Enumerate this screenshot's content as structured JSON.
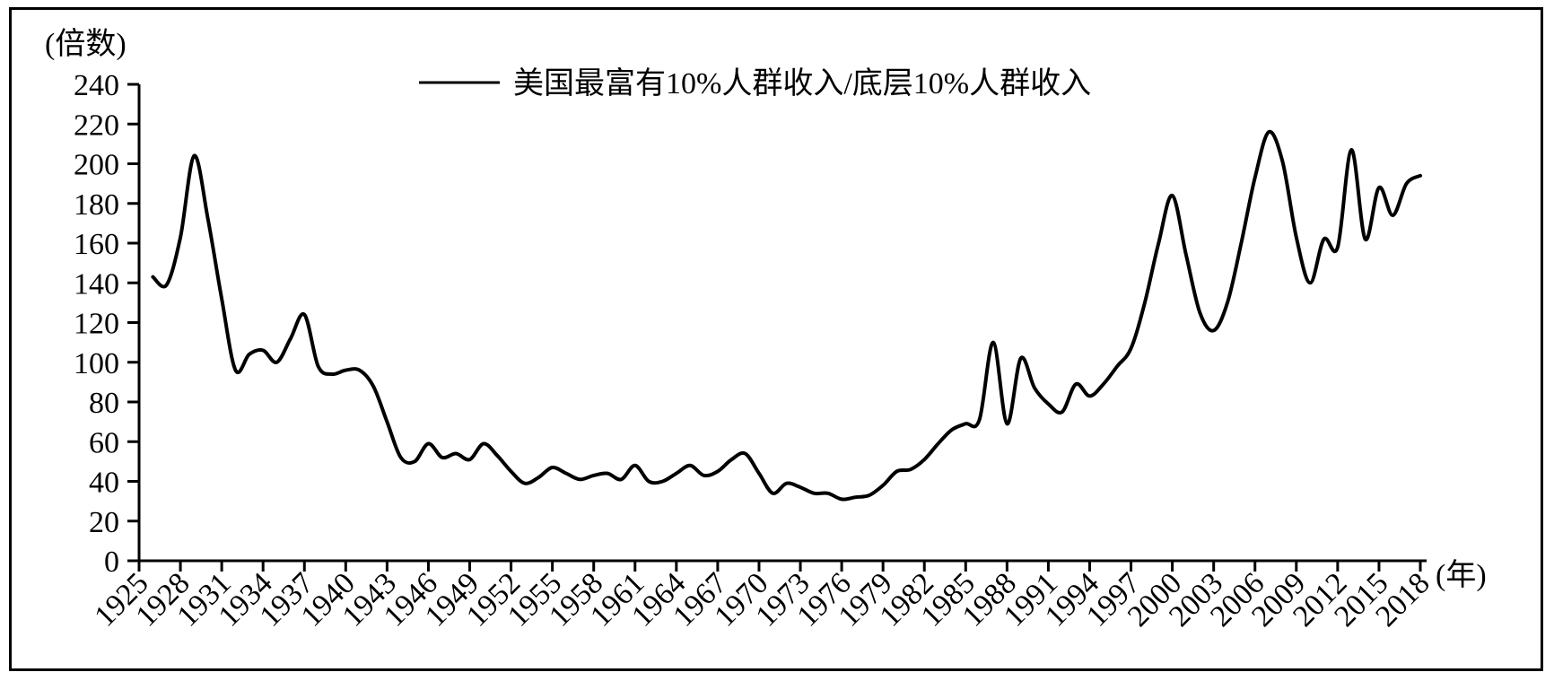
{
  "chart_data": {
    "type": "line",
    "title": "",
    "legend": [
      "美国最富有10%人群收入/底层10%人群收入"
    ],
    "legend_position": "top-center",
    "legend_symbol": "line",
    "ylabel": "(倍数)",
    "xlabel": "(年)",
    "ylim": [
      0,
      240
    ],
    "y_ticks": [
      0,
      20,
      40,
      60,
      80,
      100,
      120,
      140,
      160,
      180,
      200,
      220,
      240
    ],
    "x_ticks": [
      1925,
      1928,
      1931,
      1934,
      1937,
      1940,
      1943,
      1946,
      1949,
      1952,
      1955,
      1958,
      1961,
      1964,
      1967,
      1970,
      1973,
      1976,
      1979,
      1982,
      1985,
      1988,
      1991,
      1994,
      1997,
      2000,
      2003,
      2006,
      2009,
      2012,
      2015,
      2018
    ],
    "grid": false,
    "line_color": "#000000",
    "background_color": "#ffffff",
    "series": [
      {
        "name": "美国最富有10%人群收入/底层10%人群收入",
        "x": [
          1926,
          1927,
          1928,
          1929,
          1930,
          1931,
          1932,
          1933,
          1934,
          1935,
          1936,
          1937,
          1938,
          1939,
          1940,
          1941,
          1942,
          1943,
          1944,
          1945,
          1946,
          1947,
          1948,
          1949,
          1950,
          1951,
          1952,
          1953,
          1954,
          1955,
          1956,
          1957,
          1958,
          1959,
          1960,
          1961,
          1962,
          1963,
          1964,
          1965,
          1966,
          1967,
          1968,
          1969,
          1970,
          1971,
          1972,
          1973,
          1974,
          1975,
          1976,
          1977,
          1978,
          1979,
          1980,
          1981,
          1982,
          1983,
          1984,
          1985,
          1986,
          1987,
          1988,
          1989,
          1990,
          1991,
          1992,
          1993,
          1994,
          1995,
          1996,
          1997,
          1998,
          1999,
          2000,
          2001,
          2002,
          2003,
          2004,
          2005,
          2006,
          2007,
          2008,
          2009,
          2010,
          2011,
          2012,
          2013,
          2014,
          2015,
          2016,
          2017,
          2018
        ],
        "y": [
          143,
          139,
          163,
          204,
          172,
          132,
          96,
          104,
          106,
          100,
          112,
          124,
          98,
          94,
          96,
          96,
          88,
          70,
          52,
          50,
          59,
          52,
          54,
          51,
          59,
          53,
          45,
          39,
          42,
          47,
          44,
          41,
          43,
          44,
          41,
          48,
          40,
          40,
          44,
          48,
          43,
          45,
          51,
          54,
          44,
          34,
          39,
          37,
          34,
          34,
          31,
          32,
          33,
          38,
          45,
          46,
          51,
          59,
          66,
          69,
          71,
          110,
          69,
          102,
          87,
          79,
          75,
          89,
          83,
          89,
          98,
          107,
          130,
          160,
          184,
          154,
          125,
          116,
          130,
          160,
          193,
          216,
          201,
          163,
          140,
          162,
          158,
          207,
          162,
          188,
          174,
          190,
          194
        ]
      }
    ]
  }
}
